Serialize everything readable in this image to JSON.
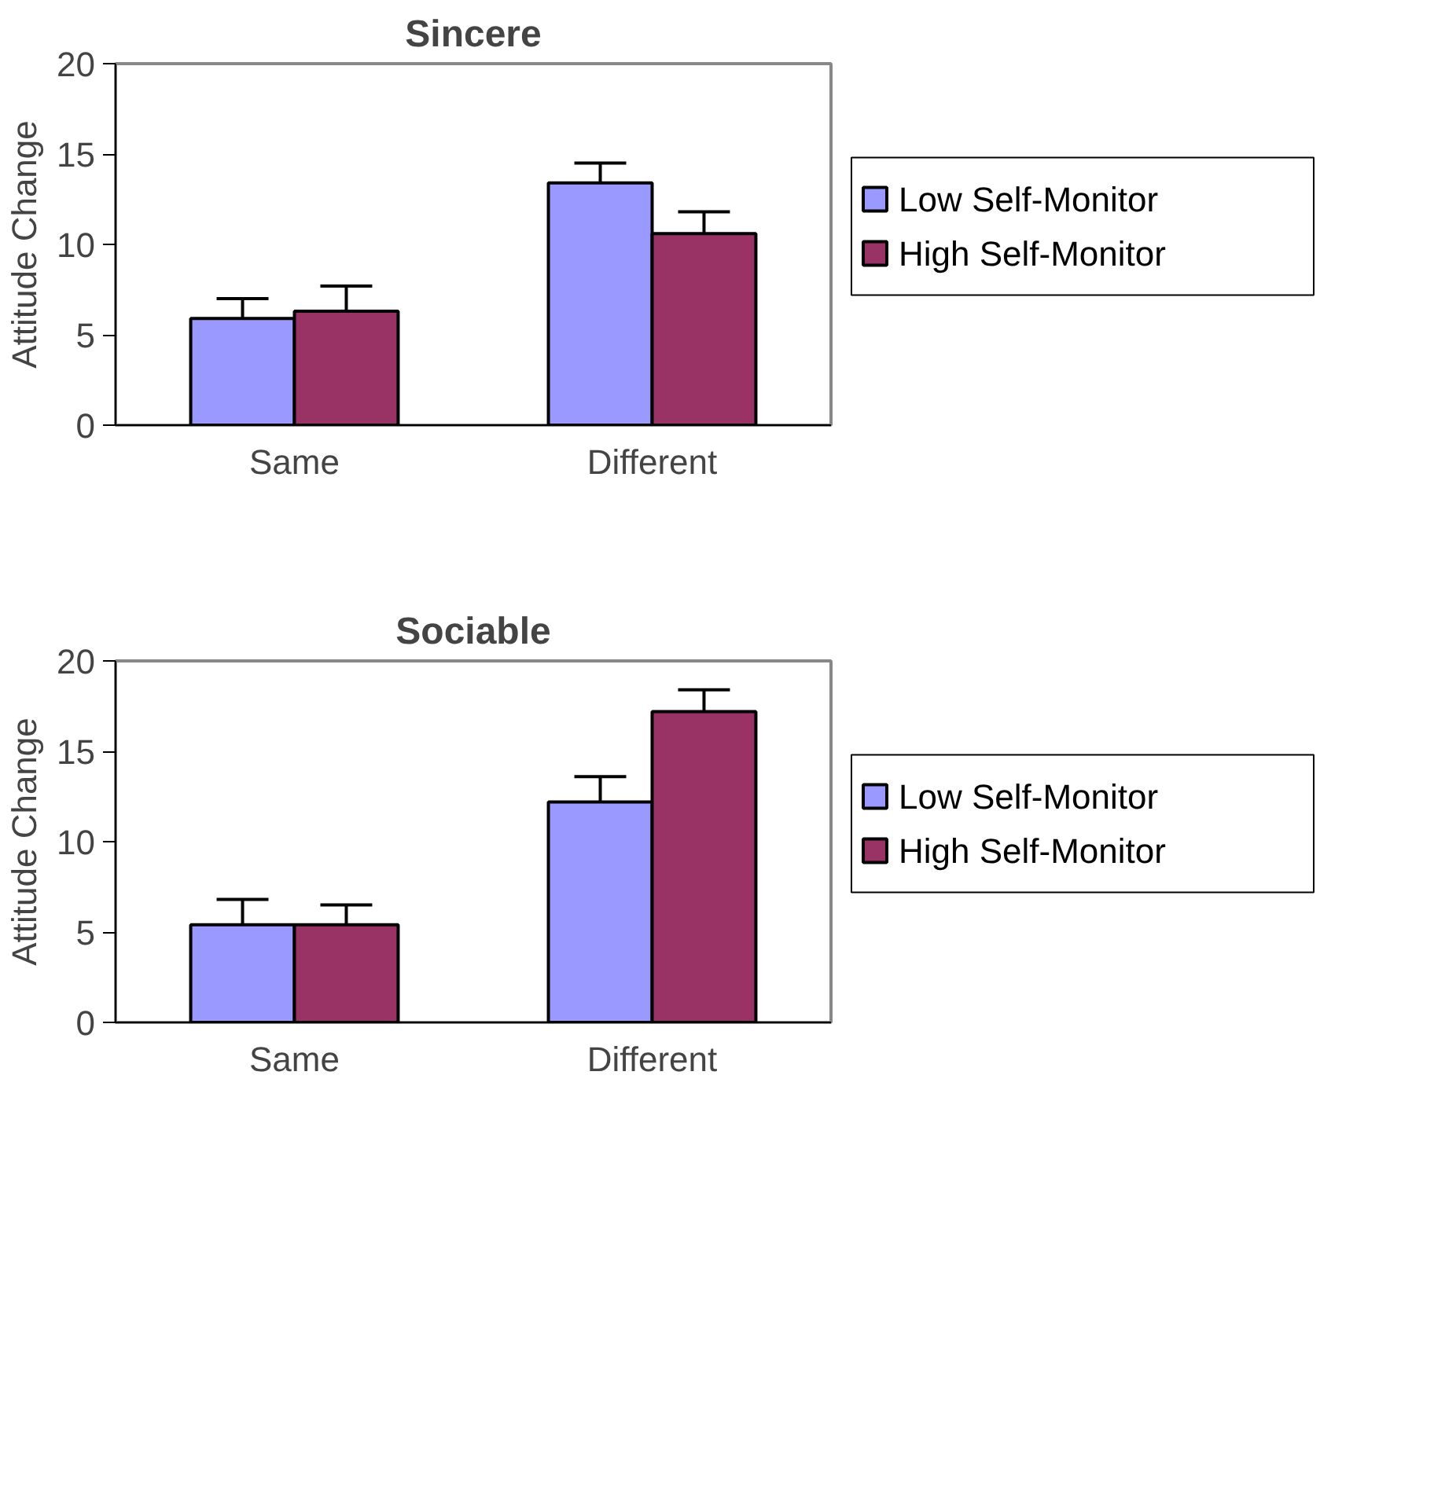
{
  "chart_data": [
    {
      "type": "bar",
      "title": "Sincere",
      "ylabel": "Attitude Change",
      "categories": [
        "Same",
        "Different"
      ],
      "ylim": [
        0,
        20
      ],
      "yticks": [
        0,
        5,
        10,
        15,
        20
      ],
      "grid": false,
      "legend": "right",
      "series": [
        {
          "name": "Low Self-Monitor",
          "color": "#9999ff",
          "values": [
            5.9,
            13.4
          ],
          "errors": [
            [
              5.9,
              7.0
            ],
            [
              13.4,
              14.5
            ]
          ]
        },
        {
          "name": "High Self-Monitor",
          "color": "#993366",
          "values": [
            6.3,
            10.6
          ],
          "errors": [
            [
              6.3,
              7.7
            ],
            [
              10.6,
              11.8
            ]
          ]
        }
      ]
    },
    {
      "type": "bar",
      "title": "Sociable",
      "ylabel": "Attitude Change",
      "categories": [
        "Same",
        "Different"
      ],
      "ylim": [
        0,
        20
      ],
      "yticks": [
        0,
        5,
        10,
        15,
        20
      ],
      "grid": false,
      "legend": "right",
      "series": [
        {
          "name": "Low Self-Monitor",
          "color": "#9999ff",
          "values": [
            5.4,
            12.2
          ],
          "errors": [
            [
              5.4,
              6.8
            ],
            [
              12.2,
              13.6
            ]
          ]
        },
        {
          "name": "High Self-Monitor",
          "color": "#993366",
          "values": [
            5.4,
            17.2
          ],
          "errors": [
            [
              5.4,
              6.5
            ],
            [
              17.2,
              18.4
            ]
          ]
        }
      ]
    }
  ]
}
